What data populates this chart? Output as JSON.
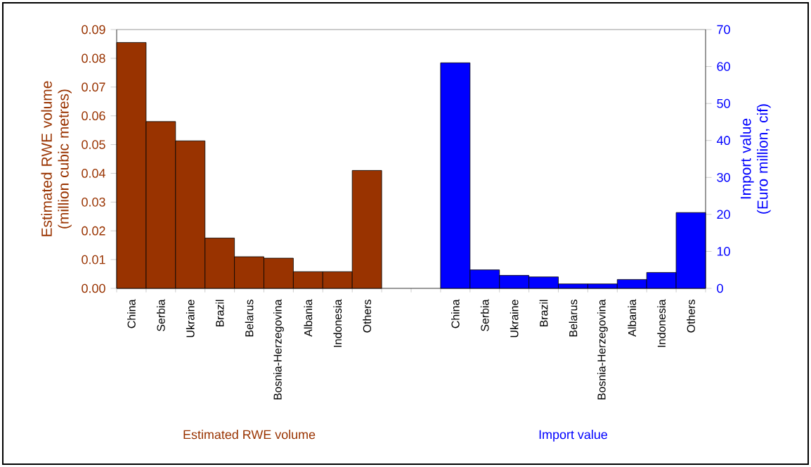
{
  "chart_data": {
    "type": "bar",
    "categories": [
      "China",
      "Serbia",
      "Ukraine",
      "Brazil",
      "Belarus",
      "Bosnia-Herzegovina",
      "Albania",
      "Indonesia",
      "Others",
      null,
      null,
      "China",
      "Serbia",
      "Ukraine",
      "Brazil",
      "Belarus",
      "Bosnia-Herzegovina",
      "Albania",
      "Indonesia",
      "Others"
    ],
    "series": [
      {
        "name": "Estimated RWE volume",
        "color": "#993300",
        "values": [
          0.0855,
          0.058,
          0.0513,
          0.0175,
          0.011,
          0.0105,
          0.0058,
          0.0058,
          0.041,
          null,
          null,
          null,
          null,
          null,
          null,
          null,
          null,
          null,
          null,
          null
        ]
      },
      {
        "name": "Import value",
        "color": "#0000ff",
        "axis": "y2",
        "values": [
          null,
          null,
          null,
          null,
          null,
          null,
          null,
          null,
          null,
          null,
          null,
          61,
          5,
          3.5,
          3.1,
          1.2,
          1.2,
          2.4,
          4.3,
          20.5
        ]
      }
    ],
    "ylabel": "Estimated RWE volume (million cubic metres)",
    "y2label": "Import value (Euro million, cif)",
    "ylim": [
      0,
      0.09
    ],
    "yticks": [
      {
        "value": 0,
        "label": "0.00"
      },
      0.01,
      0.02,
      0.03,
      0.04,
      0.05,
      0.06,
      0.07,
      0.08,
      0.09
    ],
    "y2lim": [
      0,
      70
    ],
    "y2ticks": [
      0,
      10,
      20,
      30,
      40,
      50,
      60,
      70
    ],
    "grid": false
  }
}
